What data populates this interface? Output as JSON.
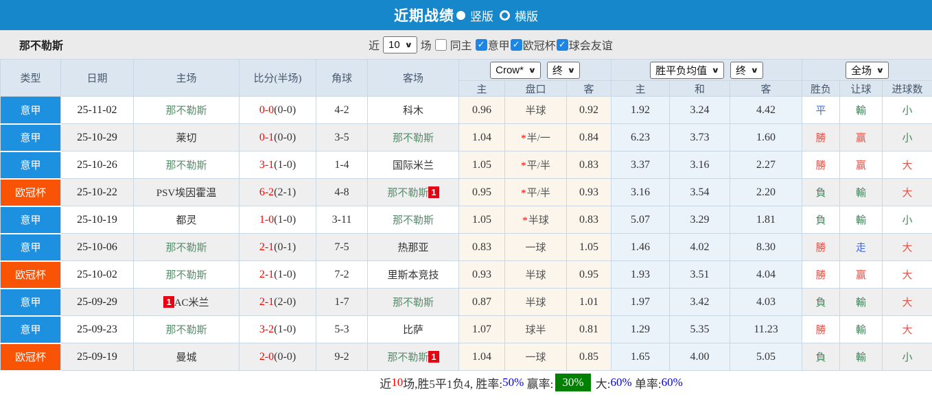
{
  "topbar": {
    "title": "近期战绩",
    "radio_vertical": "竖版",
    "radio_horizontal": "横版"
  },
  "filterbar": {
    "team": "那不勒斯",
    "recent_label": "近",
    "recent_value": "10",
    "games_label": "场",
    "same_home": {
      "label": "同主",
      "checked": false
    },
    "leagues": [
      {
        "label": "意甲",
        "checked": true
      },
      {
        "label": "欧冠杯",
        "checked": true
      },
      {
        "label": "球会友谊",
        "checked": true
      }
    ]
  },
  "icons": {
    "chevron": "∨",
    "check": "✓"
  },
  "table": {
    "dropdowns": {
      "odds_company": "Crow*",
      "fin1": "终",
      "avg": "胜平负均值",
      "fin2": "终",
      "period": "全场"
    },
    "headers": {
      "type": "类型",
      "date": "日期",
      "home": "主场",
      "score": "比分(半场)",
      "corners": "角球",
      "away": "客场",
      "h": "主",
      "hcap": "盘口",
      "a": "客",
      "avg_h": "主",
      "avg_d": "和",
      "avg_a": "客",
      "result": "胜负",
      "let": "让球",
      "goals": "进球数"
    },
    "rows": [
      {
        "league": "意甲",
        "lg": "blue",
        "date": "25-11-02",
        "home": "那不勒斯",
        "home_hl": true,
        "home_badge": "",
        "home_badge_pos": "",
        "ft": "0-0",
        "ht": "0-0",
        "corners": "4-2",
        "away": "科木",
        "away_hl": false,
        "away_badge": "",
        "crow": [
          "0.96",
          "半球",
          "0.92"
        ],
        "star": false,
        "avg": [
          "1.92",
          "3.24",
          "4.42"
        ],
        "res": [
          "平",
          "b"
        ],
        "let": [
          "輸",
          "g"
        ],
        "goal": [
          "小",
          "g"
        ]
      },
      {
        "league": "意甲",
        "lg": "blue",
        "date": "25-10-29",
        "home": "莱切",
        "home_hl": false,
        "home_badge": "",
        "home_badge_pos": "",
        "ft": "0-1",
        "ht": "0-0",
        "corners": "3-5",
        "away": "那不勒斯",
        "away_hl": true,
        "away_badge": "",
        "crow": [
          "1.04",
          "半/一",
          "0.84"
        ],
        "star": true,
        "avg": [
          "6.23",
          "3.73",
          "1.60"
        ],
        "res": [
          "勝",
          "r"
        ],
        "let": [
          "赢",
          "r"
        ],
        "goal": [
          "小",
          "g"
        ]
      },
      {
        "league": "意甲",
        "lg": "blue",
        "date": "25-10-26",
        "home": "那不勒斯",
        "home_hl": true,
        "home_badge": "",
        "home_badge_pos": "",
        "ft": "3-1",
        "ht": "1-0",
        "corners": "1-4",
        "away": "国际米兰",
        "away_hl": false,
        "away_badge": "",
        "crow": [
          "1.05",
          "平/半",
          "0.83"
        ],
        "star": true,
        "avg": [
          "3.37",
          "3.16",
          "2.27"
        ],
        "res": [
          "勝",
          "r"
        ],
        "let": [
          "赢",
          "r"
        ],
        "goal": [
          "大",
          "r"
        ]
      },
      {
        "league": "欧冠杯",
        "lg": "orange",
        "date": "25-10-22",
        "home": "PSV埃因霍温",
        "home_hl": false,
        "home_badge": "",
        "home_badge_pos": "",
        "ft": "6-2",
        "ht": "2-1",
        "corners": "4-8",
        "away": "那不勒斯",
        "away_hl": true,
        "away_badge": "1",
        "crow": [
          "0.95",
          "平/半",
          "0.93"
        ],
        "star": true,
        "avg": [
          "3.16",
          "3.54",
          "2.20"
        ],
        "res": [
          "負",
          "g"
        ],
        "let": [
          "輸",
          "g"
        ],
        "goal": [
          "大",
          "r"
        ]
      },
      {
        "league": "意甲",
        "lg": "blue",
        "date": "25-10-19",
        "home": "都灵",
        "home_hl": false,
        "home_badge": "",
        "home_badge_pos": "",
        "ft": "1-0",
        "ht": "1-0",
        "corners": "3-11",
        "away": "那不勒斯",
        "away_hl": true,
        "away_badge": "",
        "crow": [
          "1.05",
          "半球",
          "0.83"
        ],
        "star": true,
        "avg": [
          "5.07",
          "3.29",
          "1.81"
        ],
        "res": [
          "負",
          "g"
        ],
        "let": [
          "輸",
          "g"
        ],
        "goal": [
          "小",
          "g"
        ]
      },
      {
        "league": "意甲",
        "lg": "blue",
        "date": "25-10-06",
        "home": "那不勒斯",
        "home_hl": true,
        "home_badge": "",
        "home_badge_pos": "",
        "ft": "2-1",
        "ht": "0-1",
        "corners": "7-5",
        "away": "热那亚",
        "away_hl": false,
        "away_badge": "",
        "crow": [
          "0.83",
          "一球",
          "1.05"
        ],
        "star": false,
        "avg": [
          "1.46",
          "4.02",
          "8.30"
        ],
        "res": [
          "勝",
          "r"
        ],
        "let": [
          "走",
          "b"
        ],
        "goal": [
          "大",
          "r"
        ]
      },
      {
        "league": "欧冠杯",
        "lg": "orange",
        "date": "25-10-02",
        "home": "那不勒斯",
        "home_hl": true,
        "home_badge": "",
        "home_badge_pos": "",
        "ft": "2-1",
        "ht": "1-0",
        "corners": "7-2",
        "away": "里斯本竞技",
        "away_hl": false,
        "away_badge": "",
        "crow": [
          "0.93",
          "半球",
          "0.95"
        ],
        "star": false,
        "avg": [
          "1.93",
          "3.51",
          "4.04"
        ],
        "res": [
          "勝",
          "r"
        ],
        "let": [
          "赢",
          "r"
        ],
        "goal": [
          "大",
          "r"
        ]
      },
      {
        "league": "意甲",
        "lg": "blue",
        "date": "25-09-29",
        "home": "AC米兰",
        "home_hl": false,
        "home_badge": "1",
        "home_badge_pos": "before",
        "ft": "2-1",
        "ht": "2-0",
        "corners": "1-7",
        "away": "那不勒斯",
        "away_hl": true,
        "away_badge": "",
        "crow": [
          "0.87",
          "半球",
          "1.01"
        ],
        "star": false,
        "avg": [
          "1.97",
          "3.42",
          "4.03"
        ],
        "res": [
          "負",
          "g"
        ],
        "let": [
          "輸",
          "g"
        ],
        "goal": [
          "大",
          "r"
        ]
      },
      {
        "league": "意甲",
        "lg": "blue",
        "date": "25-09-23",
        "home": "那不勒斯",
        "home_hl": true,
        "home_badge": "",
        "home_badge_pos": "",
        "ft": "3-2",
        "ht": "1-0",
        "corners": "5-3",
        "away": "比萨",
        "away_hl": false,
        "away_badge": "",
        "crow": [
          "1.07",
          "球半",
          "0.81"
        ],
        "star": false,
        "avg": [
          "1.29",
          "5.35",
          "11.23"
        ],
        "res": [
          "勝",
          "r"
        ],
        "let": [
          "輸",
          "g"
        ],
        "goal": [
          "大",
          "r"
        ]
      },
      {
        "league": "欧冠杯",
        "lg": "orange",
        "date": "25-09-19",
        "home": "曼城",
        "home_hl": false,
        "home_badge": "",
        "home_badge_pos": "",
        "ft": "2-0",
        "ht": "0-0",
        "corners": "9-2",
        "away": "那不勒斯",
        "away_hl": true,
        "away_badge": "1",
        "crow": [
          "1.04",
          "一球",
          "0.85"
        ],
        "star": false,
        "avg": [
          "1.65",
          "4.00",
          "5.05"
        ],
        "res": [
          "負",
          "g"
        ],
        "let": [
          "輸",
          "g"
        ],
        "goal": [
          "小",
          "g"
        ]
      }
    ]
  },
  "summary": {
    "parts": [
      {
        "t": "近",
        "c": "plain"
      },
      {
        "t": "10",
        "c": "red"
      },
      {
        "t": "场,胜5平1负4, 胜率:",
        "c": "plain"
      },
      {
        "t": "50%",
        "c": "blue"
      },
      {
        "t": " 赢率:",
        "c": "plain"
      },
      {
        "t": "30%",
        "c": "greenbg"
      },
      {
        "t": " 大:",
        "c": "plain"
      },
      {
        "t": "60%",
        "c": "blue"
      },
      {
        "t": " 单率:",
        "c": "plain"
      },
      {
        "t": "60%",
        "c": "blue"
      }
    ]
  },
  "colors": {
    "topbar": "#1587ca",
    "league_serie_a": "#1e90e0",
    "league_ucl": "#f95306",
    "header_bg": "#dce6f0",
    "crow_col_bg": "#fbf5ec",
    "avg_col_bg": "#eaf2fa",
    "team_highlight": "#578c6b",
    "score_red": "#fe0000",
    "win_red": "#e25449",
    "lose_green": "#49835e",
    "draw_blue": "#4169e1",
    "summary_green_bg": "#018001"
  }
}
